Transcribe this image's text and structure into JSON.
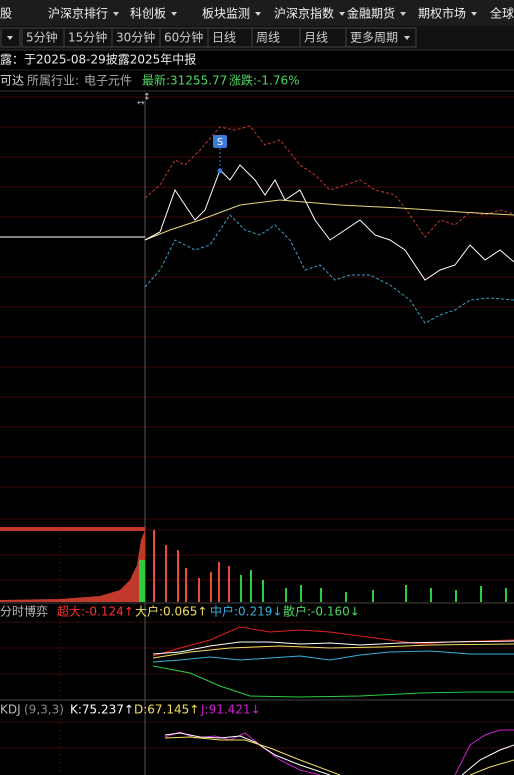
{
  "menu": [
    "股",
    "沪深京排行",
    "科创板",
    "板块监测",
    "沪深京指数",
    "金融期货",
    "期权市场",
    "全球"
  ],
  "periods": [
    "5分钟",
    "15分钟",
    "30分钟",
    "60分钟",
    "日线",
    "周线",
    "月线",
    "更多周期"
  ],
  "notice": "露：于2025-08-29披露2025年中报",
  "info": {
    "name": "可达",
    "industry_label": "所属行业:",
    "industry": "电子元件",
    "latest": "最新:31255.77",
    "change": "涨跌:-1.76%"
  },
  "marker": "S",
  "game": {
    "title": "分时博弈",
    "items": [
      "超大:-0.124↑",
      "大户:0.065↑",
      "中户:0.219↓",
      "散户:-0.160↓"
    ]
  },
  "kdj": {
    "title": "KDJ",
    "params": "(9,3,3)",
    "items": [
      "K:75.237↑",
      "D:67.145↑",
      "J:91.421↓"
    ]
  }
}
